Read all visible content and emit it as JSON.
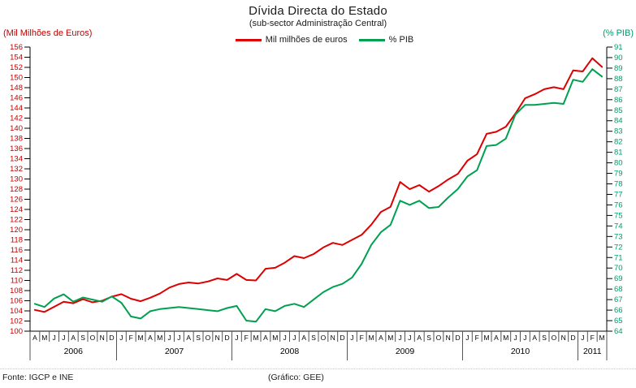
{
  "title": "Dívida Directa do Estado",
  "subtitle": "(sub-sector Administração Central)",
  "legend": [
    {
      "label": "Mil milhões de euros",
      "color": "#dd0000"
    },
    {
      "label": "% PIB",
      "color": "#00a050"
    }
  ],
  "left_axis": {
    "title": "(Mil Milhões de Euros)",
    "min": 100,
    "max": 156,
    "step": 2,
    "label_color": "#c00000"
  },
  "right_axis": {
    "title": "(% PIB)",
    "min": 64,
    "max": 91,
    "step": 1,
    "label_color": "#00996b"
  },
  "footer": {
    "source": "Fonte: IGCP e INE",
    "credit": "(Gráfico: GEE)"
  },
  "chart_data": {
    "type": "line",
    "x_months": [
      "A",
      "M",
      "J",
      "J",
      "A",
      "S",
      "O",
      "N",
      "D",
      "J",
      "F",
      "M",
      "A",
      "M",
      "J",
      "J",
      "A",
      "S",
      "O",
      "N",
      "D",
      "J",
      "F",
      "M",
      "A",
      "M",
      "J",
      "J",
      "A",
      "S",
      "O",
      "N",
      "D",
      "J",
      "F",
      "M",
      "A",
      "M",
      "J",
      "J",
      "A",
      "S",
      "O",
      "N",
      "D",
      "J",
      "F",
      "M",
      "A",
      "M",
      "J",
      "J",
      "A",
      "S",
      "O",
      "N",
      "D",
      "J",
      "F",
      "M"
    ],
    "years": [
      {
        "label": "2006",
        "months": 9
      },
      {
        "label": "2007",
        "months": 12
      },
      {
        "label": "2008",
        "months": 12
      },
      {
        "label": "2009",
        "months": 12
      },
      {
        "label": "2010",
        "months": 12
      },
      {
        "label": "2011",
        "months": 3
      }
    ],
    "series": [
      {
        "name": "Mil milhões de euros",
        "axis": "left",
        "color": "#dd0000",
        "values": [
          104.2,
          103.8,
          104.8,
          105.8,
          105.5,
          106.3,
          105.7,
          106.0,
          106.8,
          107.3,
          106.4,
          105.9,
          106.6,
          107.4,
          108.6,
          109.3,
          109.6,
          109.4,
          109.8,
          110.4,
          110.1,
          111.3,
          110.1,
          110.0,
          112.3,
          112.5,
          113.5,
          114.8,
          114.4,
          115.2,
          116.5,
          117.4,
          117.0,
          118.0,
          119.0,
          121.0,
          123.5,
          124.5,
          129.4,
          128.0,
          128.8,
          127.5,
          128.6,
          129.9,
          131.0,
          133.6,
          134.9,
          138.9,
          139.3,
          140.3,
          142.9,
          145.9,
          146.7,
          147.7,
          148.1,
          147.7,
          151.4,
          151.2,
          153.8,
          152.1
        ]
      },
      {
        "name": "% PIB",
        "axis": "right",
        "color": "#00a050",
        "values": [
          66.6,
          66.3,
          67.1,
          67.5,
          66.8,
          67.2,
          67.0,
          66.8,
          67.3,
          66.7,
          65.4,
          65.2,
          65.9,
          66.1,
          66.2,
          66.3,
          66.2,
          66.1,
          66.0,
          65.9,
          66.2,
          66.4,
          65.0,
          64.9,
          66.1,
          65.9,
          66.4,
          66.6,
          66.3,
          67.0,
          67.7,
          68.2,
          68.5,
          69.1,
          70.4,
          72.2,
          73.4,
          74.1,
          76.4,
          76.0,
          76.4,
          75.7,
          75.8,
          76.7,
          77.5,
          78.7,
          79.3,
          81.6,
          81.7,
          82.3,
          84.6,
          85.5,
          85.5,
          85.6,
          85.7,
          85.6,
          87.9,
          87.7,
          88.9,
          88.2
        ]
      }
    ],
    "left_ylim": [
      100,
      156
    ],
    "right_ylim": [
      64,
      91
    ],
    "grid": false,
    "legend_position": "top"
  }
}
